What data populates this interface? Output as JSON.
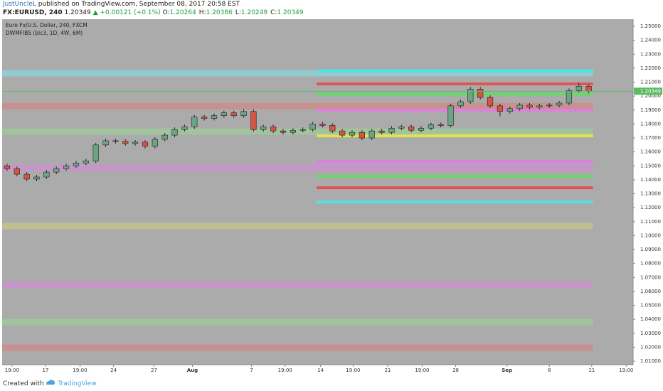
{
  "header": {
    "author": "JustUncleL",
    "published": "published on TradingView.com, September 08, 2017 20:58 EST",
    "symbol": "FX:EURUSD, 240",
    "change": "▲ +0.00121 (+0.1%)",
    "ohlc": [
      {
        "label": "O:",
        "value": "1.20264"
      },
      {
        "label": "H:",
        "value": "1.20386"
      },
      {
        "label": "L:",
        "value": "1.20249"
      },
      {
        "label": "C:",
        "value": "1.20349"
      }
    ]
  },
  "footer": {
    "created": "Created with",
    "brand": "TradingView"
  },
  "chart_data": {
    "type": "candlestick",
    "series_label": "Euro Fx/U.S. Dollar, 240, FXCM",
    "indicator_label": "DWMFIBS (blc3, 1D, 4W, 6M)",
    "last_price": 1.20349,
    "last_color": "#5dbb63",
    "up_color": "#6ba583",
    "down_color": "#d75442",
    "background": "#ababab",
    "xlim": [
      -0.5,
      63.5
    ],
    "xticks": [
      {
        "value": 0.5,
        "label": "19:00"
      },
      {
        "value": 3.9,
        "label": "17"
      },
      {
        "value": 7.4,
        "label": "19:00"
      },
      {
        "value": 10.8,
        "label": "24"
      },
      {
        "value": 14.9,
        "label": "27"
      },
      {
        "value": 18.8,
        "label": "Aug"
      },
      {
        "value": 24.8,
        "label": "7"
      },
      {
        "value": 28.2,
        "label": "19:00"
      },
      {
        "value": 31.8,
        "label": "14"
      },
      {
        "value": 35.1,
        "label": "19:00"
      },
      {
        "value": 38.6,
        "label": "21"
      },
      {
        "value": 42.1,
        "label": "19:00"
      },
      {
        "value": 45.5,
        "label": "28"
      },
      {
        "value": 50.7,
        "label": "Sep"
      },
      {
        "value": 55.0,
        "label": "8"
      },
      {
        "value": 59.3,
        "label": "11"
      },
      {
        "value": 62.8,
        "label": "19:00"
      }
    ],
    "ylim": [
      1.0075,
      1.2551
    ],
    "yticks": [
      {
        "value": 1.25,
        "label": "1.25000"
      },
      {
        "value": 1.24,
        "label": "1.24000"
      },
      {
        "value": 1.23,
        "label": "1.23000"
      },
      {
        "value": 1.22,
        "label": "1.22000"
      },
      {
        "value": 1.21,
        "label": "1.21000"
      },
      {
        "value": 1.2,
        "label": "1.20000"
      },
      {
        "value": 1.19,
        "label": "1.19000"
      },
      {
        "value": 1.18,
        "label": "1.18000"
      },
      {
        "value": 1.17,
        "label": "1.17000"
      },
      {
        "value": 1.16,
        "label": "1.16000"
      },
      {
        "value": 1.15,
        "label": "1.15000"
      },
      {
        "value": 1.14,
        "label": "1.14000"
      },
      {
        "value": 1.13,
        "label": "1.13000"
      },
      {
        "value": 1.12,
        "label": "1.12000"
      },
      {
        "value": 1.11,
        "label": "1.11000"
      },
      {
        "value": 1.1,
        "label": "1.10000"
      },
      {
        "value": 1.09,
        "label": "1.09000"
      },
      {
        "value": 1.08,
        "label": "1.08000"
      },
      {
        "value": 1.07,
        "label": "1.07000"
      },
      {
        "value": 1.06,
        "label": "1.06000"
      },
      {
        "value": 1.05,
        "label": "1.05000"
      },
      {
        "value": 1.04,
        "label": "1.04000"
      },
      {
        "value": 1.03,
        "label": "1.03000"
      },
      {
        "value": 1.02,
        "label": "1.02000"
      },
      {
        "value": 1.01,
        "label": "1.01000"
      }
    ],
    "candles": {
      "open": [
        1.15,
        1.148,
        1.144,
        1.1405,
        1.142,
        1.1455,
        1.148,
        1.15,
        1.152,
        1.1535,
        1.165,
        1.168,
        1.1675,
        1.166,
        1.167,
        1.164,
        1.169,
        1.172,
        1.176,
        1.178,
        1.185,
        1.184,
        1.186,
        1.188,
        1.186,
        1.189,
        1.176,
        1.178,
        1.175,
        1.174,
        1.1755,
        1.176,
        1.18,
        1.179,
        1.175,
        1.172,
        1.174,
        1.17,
        1.175,
        1.174,
        1.177,
        1.178,
        1.1755,
        1.177,
        1.1795,
        1.179,
        1.193,
        1.196,
        1.205,
        1.199,
        1.193,
        1.189,
        1.191,
        1.1935,
        1.192,
        1.193,
        1.1935,
        1.195,
        1.204,
        1.207
      ],
      "high": [
        1.1515,
        1.1495,
        1.1455,
        1.1435,
        1.147,
        1.1495,
        1.1515,
        1.1535,
        1.155,
        1.1665,
        1.1695,
        1.1695,
        1.169,
        1.1685,
        1.1685,
        1.1705,
        1.1735,
        1.1775,
        1.1795,
        1.1865,
        1.1865,
        1.1875,
        1.1895,
        1.1895,
        1.1905,
        1.1905,
        1.1795,
        1.1795,
        1.1765,
        1.177,
        1.1775,
        1.1815,
        1.1815,
        1.1805,
        1.1765,
        1.1755,
        1.1755,
        1.1765,
        1.1765,
        1.1785,
        1.1795,
        1.1795,
        1.1785,
        1.181,
        1.181,
        1.1945,
        1.1975,
        1.2065,
        1.2065,
        1.2005,
        1.1945,
        1.1925,
        1.195,
        1.195,
        1.1945,
        1.195,
        1.1965,
        1.2055,
        1.2095,
        1.2085
      ],
      "low": [
        1.1465,
        1.1425,
        1.139,
        1.139,
        1.1405,
        1.144,
        1.1465,
        1.1485,
        1.1505,
        1.152,
        1.1635,
        1.166,
        1.1645,
        1.1645,
        1.1625,
        1.1625,
        1.1675,
        1.1705,
        1.1745,
        1.1765,
        1.1825,
        1.1825,
        1.1845,
        1.1845,
        1.1845,
        1.1745,
        1.1745,
        1.1735,
        1.1725,
        1.1725,
        1.174,
        1.1745,
        1.1775,
        1.1735,
        1.1705,
        1.1705,
        1.1685,
        1.1685,
        1.1725,
        1.1725,
        1.1755,
        1.174,
        1.174,
        1.1755,
        1.1775,
        1.1775,
        1.1915,
        1.1945,
        1.1975,
        1.1915,
        1.1855,
        1.1875,
        1.1895,
        1.1905,
        1.1905,
        1.1915,
        1.192,
        1.1935,
        1.2025,
        1.202
      ],
      "close": [
        1.148,
        1.144,
        1.1405,
        1.142,
        1.1455,
        1.148,
        1.15,
        1.152,
        1.1535,
        1.165,
        1.168,
        1.1675,
        1.166,
        1.167,
        1.164,
        1.169,
        1.172,
        1.176,
        1.178,
        1.185,
        1.184,
        1.186,
        1.188,
        1.186,
        1.189,
        1.176,
        1.178,
        1.175,
        1.174,
        1.1755,
        1.176,
        1.18,
        1.179,
        1.175,
        1.172,
        1.174,
        1.17,
        1.175,
        1.174,
        1.177,
        1.178,
        1.1755,
        1.177,
        1.1795,
        1.179,
        1.193,
        1.196,
        1.205,
        1.199,
        1.193,
        1.189,
        1.191,
        1.1935,
        1.192,
        1.193,
        1.1935,
        1.195,
        1.204,
        1.207,
        1.20349
      ]
    },
    "levels": [
      {
        "price": 1.2164,
        "color": "#8ad6dc",
        "start": -0.5,
        "kind": "zone"
      },
      {
        "price": 1.2182,
        "color": "#4fe3e8",
        "start": 31.4,
        "kind": "line"
      },
      {
        "price": 1.2087,
        "color": "#e0504e",
        "start": 31.4,
        "kind": "line"
      },
      {
        "price": 1.2011,
        "color": "#68d868",
        "start": 31.4,
        "kind": "line"
      },
      {
        "price": 1.1929,
        "color": "#cf8886",
        "start": -0.5,
        "kind": "zone"
      },
      {
        "price": 1.1899,
        "color": "#e07ce4",
        "start": 31.4,
        "kind": "line"
      },
      {
        "price": 1.1746,
        "color": "#9ecb98",
        "start": -0.5,
        "kind": "zone"
      },
      {
        "price": 1.1715,
        "color": "#e6e64a",
        "start": 31.4,
        "kind": "line"
      },
      {
        "price": 1.1532,
        "color": "#e07ce4",
        "start": 31.4,
        "kind": "line"
      },
      {
        "price": 1.1486,
        "color": "#cf8fd6",
        "start": -0.5,
        "kind": "zone"
      },
      {
        "price": 1.1425,
        "color": "#68d868",
        "start": 31.4,
        "kind": "line"
      },
      {
        "price": 1.1343,
        "color": "#e0504e",
        "start": 31.4,
        "kind": "line"
      },
      {
        "price": 1.1241,
        "color": "#4fe3e8",
        "start": 31.4,
        "kind": "line"
      },
      {
        "price": 1.1068,
        "color": "#c8c487",
        "start": -0.5,
        "kind": "zone"
      },
      {
        "price": 1.0645,
        "color": "#cf8fd6",
        "start": -0.5,
        "kind": "zone"
      },
      {
        "price": 1.038,
        "color": "#9ecb98",
        "start": -0.5,
        "kind": "zone"
      },
      {
        "price": 1.0197,
        "color": "#cf8886",
        "start": -0.5,
        "kind": "zone"
      }
    ]
  }
}
